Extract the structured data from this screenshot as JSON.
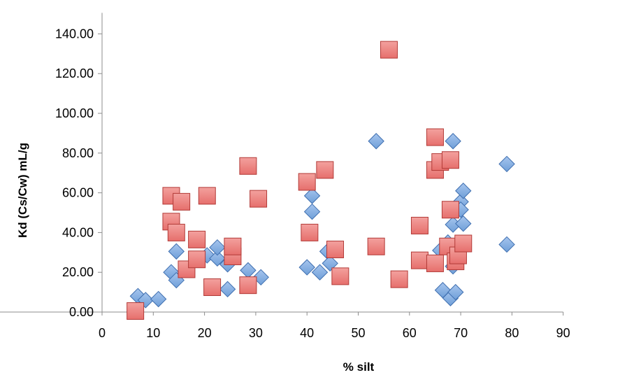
{
  "chart_data": {
    "type": "scatter",
    "title": "",
    "xlabel": "% silt",
    "ylabel": "Kd (Cs/Cw) mL/g",
    "xlim": [
      -90,
      90
    ],
    "ylim": [
      0,
      140
    ],
    "x_ticks": [
      "90",
      "0",
      "10",
      "20",
      "30",
      "40",
      "50",
      "60",
      "70",
      "80",
      "90"
    ],
    "y_ticks": [
      "0.00",
      "20.00",
      "40.00",
      "60.00",
      "80.00",
      "100.00",
      "120.00",
      "140.00"
    ],
    "grid": false,
    "legend": "none",
    "series": [
      {
        "marker": "diamond",
        "color": "#6f9fd8",
        "points": [
          [
            7,
            8
          ],
          [
            8.5,
            6
          ],
          [
            11,
            6.5
          ],
          [
            13.5,
            20
          ],
          [
            14.5,
            16
          ],
          [
            14.5,
            30.5
          ],
          [
            20.5,
            28.5
          ],
          [
            22.5,
            27
          ],
          [
            22.5,
            32.5
          ],
          [
            24.5,
            24
          ],
          [
            24.5,
            11.5
          ],
          [
            28.5,
            21
          ],
          [
            31,
            17.5
          ],
          [
            40,
            22.5
          ],
          [
            41,
            58.5
          ],
          [
            41,
            50.5
          ],
          [
            42.5,
            20
          ],
          [
            44,
            30.5
          ],
          [
            44.5,
            24.5
          ],
          [
            53.5,
            86
          ],
          [
            66,
            31
          ],
          [
            66.5,
            11
          ],
          [
            67.5,
            35
          ],
          [
            68,
            7
          ],
          [
            68.5,
            44
          ],
          [
            68.5,
            86
          ],
          [
            68.5,
            23
          ],
          [
            69,
            10
          ],
          [
            70,
            55.5
          ],
          [
            70,
            51.5
          ],
          [
            70.5,
            44.5
          ],
          [
            70.5,
            61
          ],
          [
            79,
            74.5
          ],
          [
            79,
            34
          ]
        ]
      },
      {
        "marker": "square",
        "color": "#e66f6c",
        "points": [
          [
            6.5,
            0.5
          ],
          [
            13.5,
            58.5
          ],
          [
            13.5,
            45.5
          ],
          [
            14.5,
            40
          ],
          [
            15.5,
            55.5
          ],
          [
            16.5,
            21.5
          ],
          [
            18.5,
            36.5
          ],
          [
            18.5,
            26.5
          ],
          [
            20.5,
            58.5
          ],
          [
            21.5,
            12.5
          ],
          [
            25.5,
            28
          ],
          [
            25.5,
            33
          ],
          [
            28.5,
            73.5
          ],
          [
            28.5,
            13.5
          ],
          [
            30.5,
            57
          ],
          [
            40,
            65.5
          ],
          [
            40.5,
            40
          ],
          [
            43.5,
            71.5
          ],
          [
            45.5,
            31.5
          ],
          [
            46.5,
            18
          ],
          [
            53.5,
            33
          ],
          [
            56,
            132
          ],
          [
            58,
            16.5
          ],
          [
            62,
            43.5
          ],
          [
            62,
            26
          ],
          [
            65,
            71.5
          ],
          [
            65,
            88
          ],
          [
            65,
            24.5
          ],
          [
            66,
            75.5
          ],
          [
            67.5,
            33
          ],
          [
            68,
            76.5
          ],
          [
            68,
            51.5
          ],
          [
            69,
            25.5
          ],
          [
            69.5,
            28.5
          ],
          [
            70.5,
            34.5
          ]
        ]
      }
    ]
  }
}
